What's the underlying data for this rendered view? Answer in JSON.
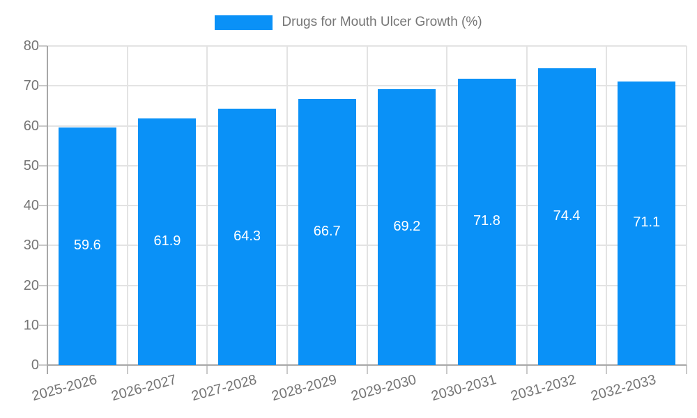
{
  "chart_data": {
    "type": "bar",
    "title": "Drugs for Mouth Ulcer Growth (%)",
    "categories": [
      "2025-2026",
      "2026-2027",
      "2027-2028",
      "2028-2029",
      "2029-2030",
      "2030-2031",
      "2031-2032",
      "2032-2033"
    ],
    "series": [
      {
        "name": "Drugs for Mouth Ulcer Growth (%)",
        "values": [
          59.6,
          61.9,
          64.3,
          66.7,
          69.2,
          71.8,
          74.4,
          71.1
        ]
      }
    ],
    "value_labels": [
      "59.6",
      "61.9",
      "64.3",
      "66.7",
      "69.2",
      "71.8",
      "74.4",
      "71.1"
    ],
    "xlabel": "",
    "ylabel": "",
    "ylim": [
      0,
      80
    ],
    "yticks": [
      0,
      10,
      20,
      30,
      40,
      50,
      60,
      70,
      80
    ],
    "grid": true,
    "legend_position": "top",
    "colors": {
      "bar": "#0a91f7",
      "grid": "#e3e3e3",
      "axis": "#a8a8a8",
      "tick": "#c9c9c9",
      "axis_text": "#757575",
      "value_label": "#ffffff",
      "background": "#ffffff"
    }
  }
}
